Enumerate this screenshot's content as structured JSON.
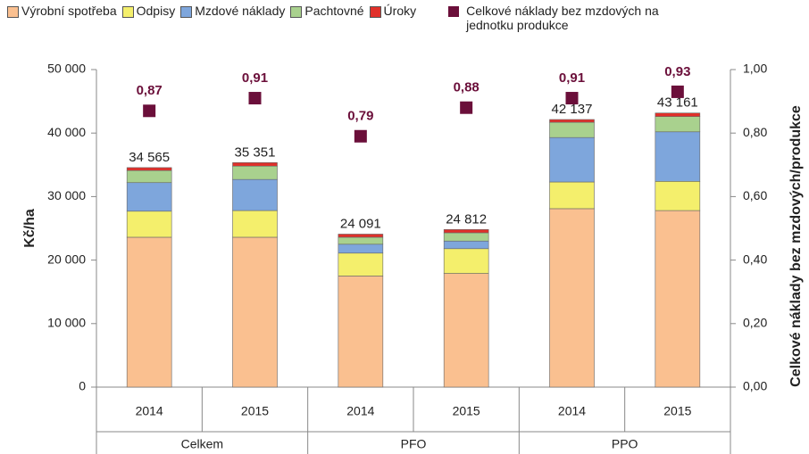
{
  "chart_data": {
    "type": "stacked-bar-scatter",
    "categories": [
      "2014",
      "2015",
      "2014",
      "2015",
      "2014",
      "2015"
    ],
    "groups": [
      "Celkem",
      "PFO",
      "PPO"
    ],
    "series": [
      {
        "name": "Výrobní spotřeba",
        "color": "#fac090",
        "values": [
          23600,
          23600,
          17500,
          17900,
          28100,
          27800
        ]
      },
      {
        "name": "Odpisy",
        "color": "#f4ef6c",
        "values": [
          4100,
          4200,
          3600,
          3900,
          4200,
          4600
        ]
      },
      {
        "name": "Mzdové náklady",
        "color": "#7ea6dc",
        "values": [
          4500,
          4900,
          1400,
          1200,
          7000,
          7800
        ]
      },
      {
        "name": "Pachtovné",
        "color": "#a9d18e",
        "values": [
          1900,
          2100,
          1100,
          1300,
          2400,
          2400
        ]
      },
      {
        "name": "Úroky",
        "color": "#e0302a",
        "values": [
          465,
          551,
          491,
          512,
          437,
          561
        ]
      },
      {
        "name": "Celkové náklady bez mzdových na jednotku produkce",
        "color": "#6b0f3a",
        "axis": "y2",
        "values": [
          0.87,
          0.91,
          0.79,
          0.88,
          0.91,
          0.93
        ],
        "value_labels": [
          "0,87",
          "0,91",
          "0,79",
          "0,88",
          "0,91",
          "0,93"
        ]
      }
    ],
    "totals": {
      "values": [
        34565,
        35351,
        24091,
        24812,
        42137,
        43161
      ],
      "value_labels": [
        "34 565",
        "35 351",
        "24 091",
        "24 812",
        "42 137",
        "43 161"
      ]
    },
    "ylabel": "Kč/ha",
    "y2label": "Celkové náklady bez mzdových/produkce",
    "ylim": [
      0,
      50000
    ],
    "yticks": [
      0,
      {
        "value": 10000,
        "label": "10 000"
      },
      {
        "value": 20000,
        "label": "20 000"
      },
      {
        "value": 30000,
        "label": "30 000"
      },
      {
        "value": 40000,
        "label": "40 000"
      },
      {
        "value": 50000,
        "label": "50 000"
      }
    ],
    "y2lim": [
      0,
      1
    ],
    "y2ticks": [
      {
        "value": 0,
        "label": "0,00"
      },
      {
        "value": 0.2,
        "label": "0,20"
      },
      {
        "value": 0.4,
        "label": "0,40"
      },
      {
        "value": 0.6,
        "label": "0,60"
      },
      {
        "value": 0.8,
        "label": "0,80"
      },
      {
        "value": 1,
        "label": "1,00"
      }
    ]
  }
}
